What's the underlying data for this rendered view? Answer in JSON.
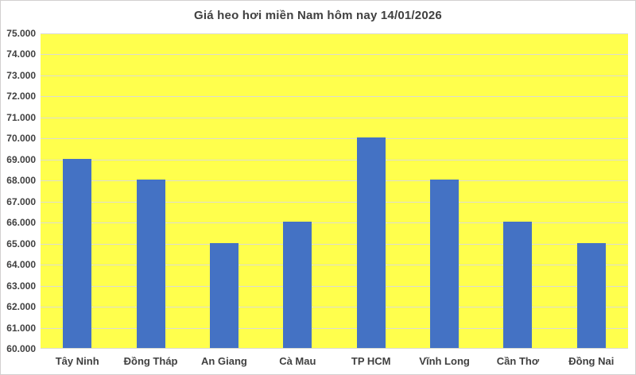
{
  "chart_data": {
    "type": "bar",
    "title": "Giá heo hơi miền Nam hôm nay 14/01/2026",
    "categories": [
      "Tây Ninh",
      "Đồng Tháp",
      "An Giang",
      "Cà Mau",
      "TP HCM",
      "Vĩnh Long",
      "Cần Thơ",
      "Đồng Nai"
    ],
    "values": [
      69000,
      68000,
      65000,
      66000,
      70000,
      68000,
      66000,
      65000
    ],
    "xlabel": "",
    "ylabel": "",
    "ylim": [
      60000,
      75000
    ],
    "ytick_step": 1000,
    "ytick_labels_desc": [
      "75.000",
      "74.000",
      "73.000",
      "72.000",
      "71.000",
      "70.000",
      "69.000",
      "68.000",
      "67.000",
      "66.000",
      "65.000",
      "64.000",
      "63.000",
      "62.000",
      "61.000",
      "60.000"
    ],
    "grid": true,
    "legend_position": "none",
    "colors": {
      "bar": "#4472C4",
      "plot_background": "#FFFF4D",
      "gridline": "#DCDCD2",
      "axis_text": "#404040",
      "title_text": "#404040",
      "frame_border": "#D2D0D0",
      "page_background": "#FFFFFF"
    }
  }
}
